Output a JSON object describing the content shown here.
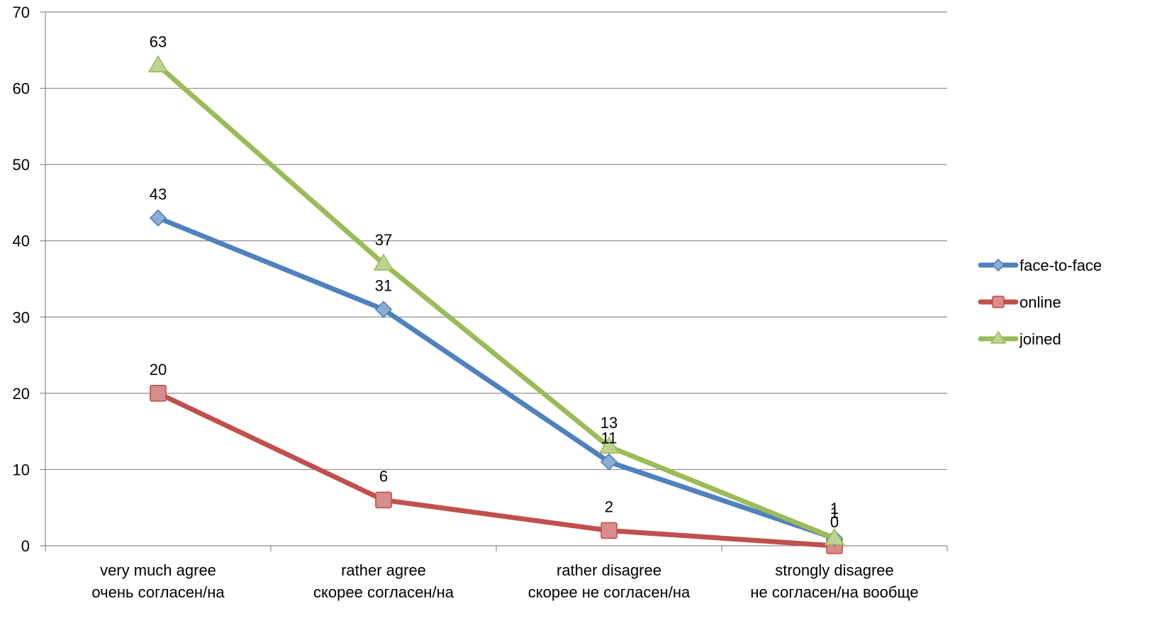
{
  "chart_data": {
    "type": "line",
    "categories": [
      [
        "very much agree",
        "очень согласен/на"
      ],
      [
        "rather agree",
        "скорее согласен/на"
      ],
      [
        "rather disagree",
        "скорее не согласен/на"
      ],
      [
        "strongly disagree",
        "не согласен/на вообще"
      ]
    ],
    "series": [
      {
        "name": "face-to-face",
        "values": [
          43,
          31,
          11,
          1
        ],
        "color": "#4F81BD",
        "marker": "diamond"
      },
      {
        "name": "online",
        "values": [
          20,
          6,
          2,
          0
        ],
        "color": "#C0504D",
        "marker": "square"
      },
      {
        "name": "joined",
        "values": [
          63,
          37,
          13,
          1
        ],
        "color": "#9BBB59",
        "marker": "triangle"
      }
    ],
    "ylim": [
      0,
      70
    ],
    "yticks": [
      0,
      10,
      20,
      30,
      40,
      50,
      60,
      70
    ],
    "grid": true,
    "legend_position": "right",
    "data_labels": true,
    "title": "",
    "xlabel": "",
    "ylabel": ""
  }
}
